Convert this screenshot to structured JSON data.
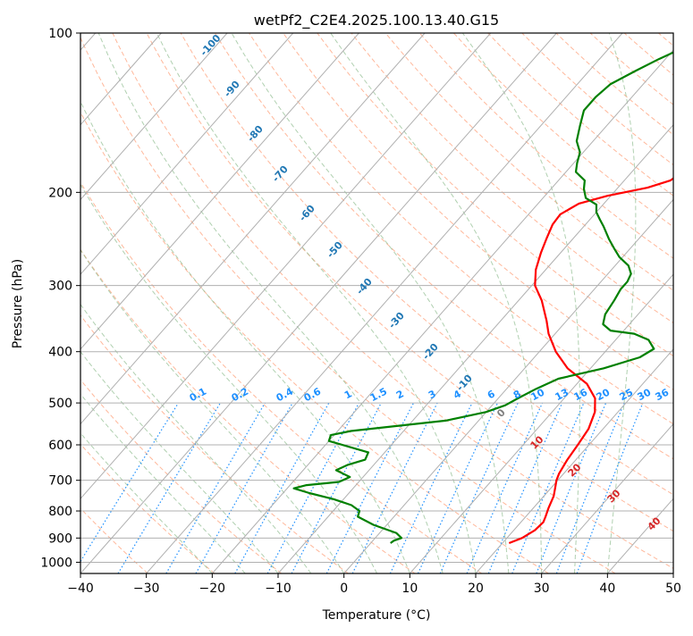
{
  "chart_data": {
    "type": "line",
    "title": "wetPf2_C2E4.2025.100.13.40.G15",
    "xlabel": "Temperature (°C)",
    "ylabel": "Pressure (hPa)",
    "xlim": [
      -40,
      50
    ],
    "ylim": [
      1050,
      100
    ],
    "y_scale": "log",
    "grid": true,
    "x_ticks": [
      -40,
      -30,
      -20,
      -10,
      0,
      10,
      20,
      30,
      40,
      50
    ],
    "y_ticks": [
      100,
      200,
      300,
      400,
      500,
      600,
      700,
      800,
      900,
      1000
    ],
    "x_tick_labels": [
      "−40",
      "−30",
      "−20",
      "−10",
      "0",
      "10",
      "20",
      "30",
      "40",
      "50"
    ],
    "y_tick_labels": [
      "100",
      "200",
      "300",
      "400",
      "500",
      "600",
      "700",
      "800",
      "900",
      "1000"
    ],
    "series": [
      {
        "color": "#ff0000",
        "points": [
          [
            21.0,
            920
          ],
          [
            22.3,
            900
          ],
          [
            23.2,
            870
          ],
          [
            23.4,
            840
          ],
          [
            23.0,
            820
          ],
          [
            22.3,
            790
          ],
          [
            21.5,
            750
          ],
          [
            20.5,
            720
          ],
          [
            19.8,
            700
          ],
          [
            19.3,
            680
          ],
          [
            18.7,
            640
          ],
          [
            18.3,
            600
          ],
          [
            17.8,
            560
          ],
          [
            16.5,
            520
          ],
          [
            14.7,
            490
          ],
          [
            11.5,
            460
          ],
          [
            6.5,
            430
          ],
          [
            2.5,
            400
          ],
          [
            -1.0,
            370
          ],
          [
            -3.0,
            350
          ],
          [
            -6.5,
            320
          ],
          [
            -9.5,
            300
          ],
          [
            -11.5,
            280
          ],
          [
            -13.0,
            260
          ],
          [
            -14.0,
            245
          ],
          [
            -15.0,
            230
          ],
          [
            -15.2,
            220
          ],
          [
            -13.8,
            210
          ],
          [
            -10.5,
            203
          ],
          [
            -5.5,
            196
          ],
          [
            -3.0,
            190
          ],
          [
            -2.0,
            180
          ],
          [
            -1.2,
            170
          ],
          [
            -0.8,
            160
          ],
          [
            0.3,
            150
          ],
          [
            3.0,
            140
          ],
          [
            4.5,
            130
          ],
          [
            6.0,
            120
          ],
          [
            7.5,
            112
          ],
          [
            9.3,
            105
          ],
          [
            11.5,
            100
          ]
        ]
      },
      {
        "color": "#008000",
        "points": [
          [
            3.0,
            920
          ],
          [
            3.2,
            910
          ],
          [
            4.0,
            900
          ],
          [
            2.5,
            880
          ],
          [
            -2.0,
            850
          ],
          [
            -5.5,
            820
          ],
          [
            -6.0,
            800
          ],
          [
            -8.0,
            780
          ],
          [
            -11.5,
            760
          ],
          [
            -16.0,
            740
          ],
          [
            -19.0,
            725
          ],
          [
            -17.5,
            715
          ],
          [
            -13.0,
            705
          ],
          [
            -12.0,
            690
          ],
          [
            -15.0,
            670
          ],
          [
            -14.0,
            655
          ],
          [
            -12.0,
            640
          ],
          [
            -12.5,
            620
          ],
          [
            -20.0,
            590
          ],
          [
            -20.5,
            575
          ],
          [
            -18.0,
            565
          ],
          [
            -5.0,
            540
          ],
          [
            0.0,
            520
          ],
          [
            2.0,
            505
          ],
          [
            3.0,
            490
          ],
          [
            4.5,
            470
          ],
          [
            6.5,
            450
          ],
          [
            12.0,
            430
          ],
          [
            16.0,
            410
          ],
          [
            17.0,
            395
          ],
          [
            15.0,
            380
          ],
          [
            12.0,
            370
          ],
          [
            8.0,
            365
          ],
          [
            6.0,
            355
          ],
          [
            5.0,
            340
          ],
          [
            4.5,
            320
          ],
          [
            4.0,
            305
          ],
          [
            4.0,
            295
          ],
          [
            3.5,
            285
          ],
          [
            2.0,
            275
          ],
          [
            -0.5,
            265
          ],
          [
            -2.5,
            255
          ],
          [
            -4.5,
            245
          ],
          [
            -7.0,
            232
          ],
          [
            -8.5,
            225
          ],
          [
            -10.0,
            218
          ],
          [
            -11.0,
            211
          ],
          [
            -13.5,
            205
          ],
          [
            -15.0,
            197
          ],
          [
            -16.0,
            190
          ],
          [
            -18.5,
            183
          ],
          [
            -19.5,
            176
          ],
          [
            -20.5,
            168
          ],
          [
            -22.5,
            160
          ],
          [
            -24.0,
            150
          ],
          [
            -25.5,
            140
          ],
          [
            -25.5,
            132
          ],
          [
            -25.0,
            125
          ],
          [
            -23.0,
            118
          ],
          [
            -21.0,
            112
          ],
          [
            -18.5,
            106
          ],
          [
            -16.0,
            100
          ]
        ]
      }
    ],
    "dry_adiabat_labels": [
      "-100",
      "-90",
      "-80",
      "-70",
      "-60",
      "-50",
      "-40",
      "-30",
      "-20",
      "-10"
    ],
    "isotherm_labels": [
      "0",
      "10",
      "20",
      "30",
      "40"
    ],
    "mixing_ratio_labels": [
      "0.1",
      "0.2",
      "0.4",
      "0.6",
      "1",
      "1.5",
      "2",
      "3",
      "4",
      "6",
      "8",
      "10",
      "13",
      "16",
      "20",
      "25",
      "30",
      "36"
    ],
    "mixing_ratio_values": [
      0.1,
      0.2,
      0.4,
      0.6,
      1,
      1.5,
      2,
      3,
      4,
      6,
      8,
      10,
      13,
      16,
      20,
      25,
      30,
      36
    ],
    "colors": {
      "temperature": "#ff0000",
      "dewpoint": "#008000",
      "dry_adiabat_labels": "#1f77b4",
      "isotherm_labels": "#d62728",
      "zero_isotherm_label": "#808080",
      "mixing_ratio": "#1e90ff",
      "dry_adiabats": "#ffa07a",
      "moist_adiabats": "#8fbc8f",
      "grid": "#b0b0b0"
    }
  }
}
